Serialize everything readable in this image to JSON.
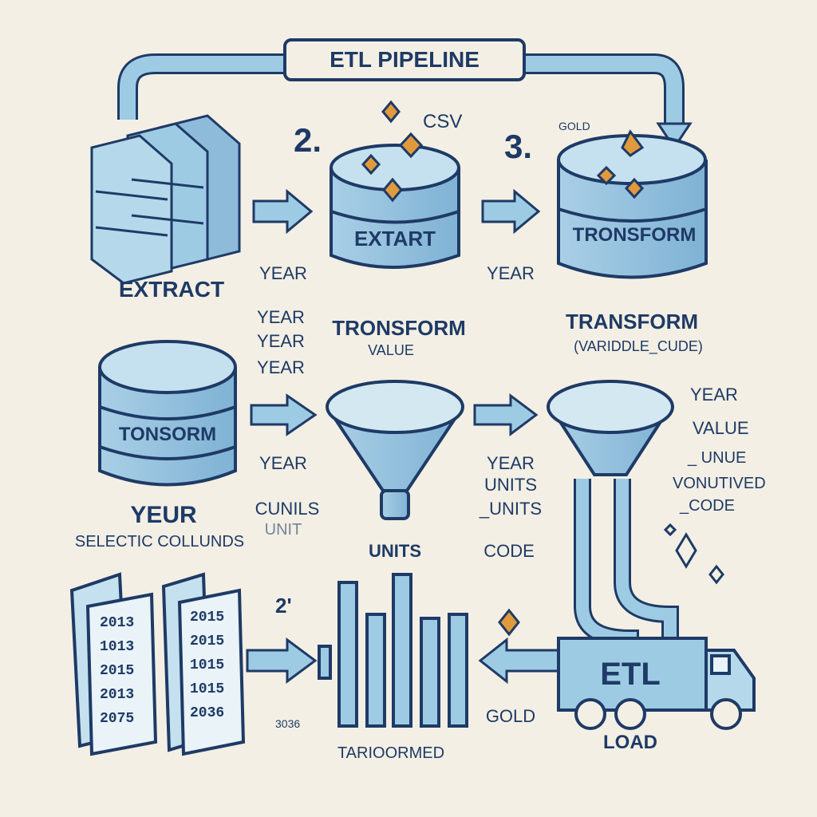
{
  "title": "ETL PIPELINE",
  "steps": {
    "two": "2.",
    "three": "3.",
    "two_small": "2'"
  },
  "labels": {
    "csv": "CSV",
    "gold_top": "GOLD",
    "extract": "EXTRACT",
    "extart": "EXTART",
    "tronsform_tank": "TRONSFORM",
    "tronsform_caption": "TRONSFORM",
    "value_caption": "VALUE",
    "transform_caption": "TRANSFORM",
    "variable_code": "(VARIDDLE_CUDE)",
    "tonsorm": "TONSORM",
    "yeur": "YEUR",
    "select_columns": "SELECTIC COLLUNDS",
    "units_funnel": "UNITS",
    "code_mid": "CODE",
    "gold_bottom": "GOLD",
    "load": "LOAD",
    "truck": "ETL",
    "tariodmed": "TARIOORMED",
    "year_small": "3036"
  },
  "year_stack_left": [
    "YEAR",
    "YEAR",
    "YEAR",
    "YEAR"
  ],
  "year_mid_right": "YEAR",
  "left_funnel_labels": [
    "YEAR",
    "CUNILS",
    "UNIT"
  ],
  "right_funnel_labels": [
    "YEAR",
    "UNITS",
    "_UNITS"
  ],
  "right_column": [
    "YEAR",
    "VALUE",
    "_ UNUE",
    "VONUTIVED",
    "_CODE"
  ],
  "doc_left_years": [
    "2013",
    "1013",
    "2015",
    "2013",
    "2075"
  ],
  "doc_right_years": [
    "2015",
    "2015",
    "1015",
    "1015",
    "2036"
  ]
}
